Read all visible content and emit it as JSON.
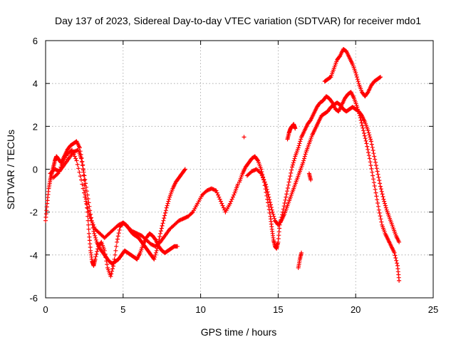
{
  "chart_data": {
    "type": "scatter",
    "title": "Day 137 of 2023, Sidereal Day-to-day VTEC variation (SDTVAR) for receiver mdo1",
    "xlabel": "GPS time / hours",
    "ylabel": "SDTVAR / TECUs",
    "xlim": [
      0,
      25
    ],
    "ylim": [
      -6,
      6
    ],
    "xticks": [
      0,
      5,
      10,
      15,
      20,
      25
    ],
    "yticks": [
      -6,
      -4,
      -2,
      0,
      2,
      4,
      6
    ],
    "xtick_labels": [
      "0",
      "5",
      "10",
      "15",
      "20",
      "25"
    ],
    "ytick_labels": [
      "-6",
      "-4",
      "-2",
      "0",
      "2",
      "4",
      "6"
    ],
    "grid": true,
    "marker": "+",
    "color": "#ff0000",
    "series": [
      {
        "x": [
          0.0,
          0.1,
          0.2,
          0.3,
          0.4,
          0.5,
          0.6,
          0.7,
          0.8,
          1.0,
          1.2,
          1.4,
          1.6,
          1.8,
          2.0,
          2.2,
          2.4,
          2.55,
          2.7,
          2.8,
          2.9,
          3.0,
          3.1,
          3.2,
          3.4,
          3.6,
          3.8,
          4.0,
          4.2,
          4.4,
          4.6,
          4.8,
          5.0,
          5.2,
          5.4,
          5.6,
          5.8,
          6.0,
          6.2,
          6.4,
          6.6,
          6.8,
          7.0,
          7.2,
          7.4,
          7.6,
          7.8,
          8.0,
          8.2,
          8.4,
          8.6,
          8.8,
          9.0
        ],
        "y": [
          -2.4,
          -1.6,
          -0.9,
          -0.5,
          -0.2,
          0.1,
          0.4,
          0.6,
          0.5,
          0.3,
          0.6,
          0.9,
          1.1,
          1.2,
          1.3,
          1.0,
          0.2,
          -1.0,
          -2.0,
          -3.0,
          -3.8,
          -4.3,
          -4.5,
          -4.2,
          -3.6,
          -3.4,
          -3.8,
          -4.6,
          -5.0,
          -4.4,
          -3.4,
          -2.7,
          -2.5,
          -2.6,
          -2.8,
          -3.0,
          -3.1,
          -3.2,
          -3.4,
          -3.6,
          -3.8,
          -4.0,
          -4.2,
          -3.7,
          -3.0,
          -2.4,
          -1.8,
          -1.3,
          -0.9,
          -0.6,
          -0.4,
          -0.2,
          0.0
        ]
      },
      {
        "x": [
          0.3,
          0.6,
          0.9,
          1.2,
          1.5,
          1.8,
          2.1,
          2.3,
          2.5,
          2.7,
          2.9,
          3.1,
          3.3,
          3.5,
          3.7,
          3.9,
          4.1,
          4.3,
          4.5,
          4.7,
          4.9,
          5.1,
          5.3,
          5.5,
          5.7,
          5.9,
          6.1,
          6.3,
          6.5,
          6.7,
          6.9,
          7.1,
          7.3,
          7.5,
          7.7,
          7.9,
          8.1,
          8.3,
          8.5
        ],
        "y": [
          -0.2,
          0.0,
          -0.1,
          0.2,
          0.5,
          0.8,
          0.9,
          0.5,
          -0.3,
          -1.2,
          -2.1,
          -2.9,
          -3.4,
          -3.7,
          -3.9,
          -4.1,
          -4.3,
          -4.4,
          -4.3,
          -4.2,
          -4.0,
          -3.8,
          -3.9,
          -4.0,
          -4.1,
          -4.2,
          -3.9,
          -3.5,
          -3.2,
          -3.0,
          -3.1,
          -3.3,
          -3.6,
          -3.8,
          -3.9,
          -3.8,
          -3.7,
          -3.6,
          -3.6
        ]
      },
      {
        "x": [
          0.5,
          0.8,
          1.1,
          1.4,
          1.7,
          2.0,
          2.3,
          2.6,
          2.9,
          3.2,
          3.5,
          3.8,
          4.1,
          4.4,
          4.7,
          5.0,
          5.3,
          5.6,
          5.9,
          6.2,
          6.5,
          6.8,
          7.1,
          7.4,
          7.7,
          8.0,
          8.3,
          8.6,
          8.9,
          9.2,
          9.5,
          9.8,
          10.1,
          10.4,
          10.7,
          11.0,
          11.3,
          11.6,
          11.9,
          12.2,
          12.4
        ],
        "y": [
          -0.4,
          -0.2,
          0.3,
          0.7,
          0.9,
          0.4,
          -0.5,
          -1.5,
          -2.3,
          -2.8,
          -3.0,
          -3.2,
          -3.0,
          -2.8,
          -2.6,
          -2.5,
          -2.7,
          -2.9,
          -3.0,
          -3.1,
          -3.3,
          -3.5,
          -3.6,
          -3.4,
          -3.1,
          -2.8,
          -2.6,
          -2.4,
          -2.3,
          -2.2,
          -2.0,
          -1.6,
          -1.2,
          -1.0,
          -0.9,
          -1.0,
          -1.5,
          -2.0,
          -1.6,
          -1.1,
          -0.7
        ]
      },
      {
        "x": [
          12.5,
          12.7,
          12.9,
          13.1,
          13.3,
          13.5,
          13.7,
          13.9,
          14.1,
          14.3,
          14.5,
          14.6,
          14.7,
          14.8,
          14.9,
          15.0,
          15.1,
          15.3,
          15.5,
          15.7,
          15.9,
          16.1,
          16.3,
          16.5,
          16.7,
          16.9,
          17.1,
          17.3,
          17.5,
          17.7,
          17.9,
          18.1,
          18.3,
          18.5,
          18.7,
          18.9,
          19.1,
          19.3,
          19.5,
          19.7,
          19.9,
          20.1,
          20.3,
          20.5,
          20.7,
          20.9,
          21.1,
          21.3,
          21.5,
          21.7,
          21.9,
          22.1,
          22.3,
          22.5,
          22.7,
          22.8
        ],
        "y": [
          -0.6,
          -0.2,
          0.1,
          0.3,
          0.5,
          0.6,
          0.4,
          0.0,
          -0.6,
          -1.4,
          -2.2,
          -2.8,
          -3.3,
          -3.6,
          -3.7,
          -3.4,
          -2.6,
          -2.0,
          -1.3,
          -0.6,
          0.1,
          0.6,
          1.0,
          1.5,
          1.8,
          2.1,
          2.3,
          2.6,
          2.9,
          3.1,
          3.2,
          3.4,
          3.3,
          3.1,
          2.8,
          2.7,
          3.0,
          3.3,
          3.5,
          3.6,
          3.3,
          2.9,
          2.4,
          1.8,
          1.2,
          0.5,
          -0.3,
          -1.1,
          -1.9,
          -2.6,
          -3.0,
          -3.3,
          -3.6,
          -3.9,
          -4.5,
          -5.2
        ]
      },
      {
        "x": [
          13.0,
          13.3,
          13.6,
          13.9,
          14.2,
          14.4,
          14.6,
          14.8,
          15.0,
          15.2,
          15.4,
          15.6,
          15.8,
          16.0,
          16.2,
          16.4,
          16.6,
          16.8,
          17.0,
          17.2,
          17.4,
          17.6,
          17.8,
          18.0,
          18.2,
          18.4,
          18.6,
          18.8,
          19.0,
          19.2,
          19.4,
          19.6,
          19.8,
          20.0,
          20.2,
          20.4,
          20.6,
          20.8,
          21.0,
          21.2,
          21.4,
          21.6,
          21.8,
          22.0,
          22.2,
          22.4,
          22.6,
          22.8
        ],
        "y": [
          -0.3,
          -0.1,
          0.0,
          -0.2,
          -0.7,
          -1.3,
          -1.9,
          -2.4,
          -2.6,
          -2.4,
          -2.1,
          -1.7,
          -1.3,
          -0.9,
          -0.5,
          -0.1,
          0.3,
          0.8,
          1.2,
          1.6,
          1.9,
          2.2,
          2.5,
          2.6,
          2.7,
          2.9,
          3.0,
          3.1,
          3.0,
          2.8,
          2.7,
          2.8,
          2.9,
          2.8,
          2.7,
          2.5,
          2.2,
          1.8,
          1.3,
          0.6,
          -0.1,
          -0.8,
          -1.4,
          -1.9,
          -2.3,
          -2.7,
          -3.1,
          -3.4
        ]
      },
      {
        "x": [
          18.0,
          18.2,
          18.4,
          18.6,
          18.8,
          19.0,
          19.2,
          19.4,
          19.6,
          19.8,
          20.0,
          20.2,
          20.4,
          20.6,
          20.8,
          21.0,
          21.2,
          21.4,
          21.6
        ],
        "y": [
          4.1,
          4.2,
          4.3,
          4.7,
          5.1,
          5.3,
          5.6,
          5.5,
          5.2,
          4.9,
          4.5,
          4.0,
          3.6,
          3.4,
          3.6,
          3.9,
          4.1,
          4.2,
          4.3
        ]
      },
      {
        "x": [
          15.6,
          15.7,
          15.8,
          15.9,
          16.0,
          16.1
        ],
        "y": [
          1.4,
          1.7,
          1.9,
          2.0,
          2.1,
          1.9
        ]
      },
      {
        "x": [
          12.8,
          16.3,
          16.4,
          16.5,
          17.0,
          17.1
        ],
        "y": [
          1.5,
          -4.6,
          -4.2,
          -3.9,
          -0.2,
          -0.5
        ]
      }
    ]
  }
}
